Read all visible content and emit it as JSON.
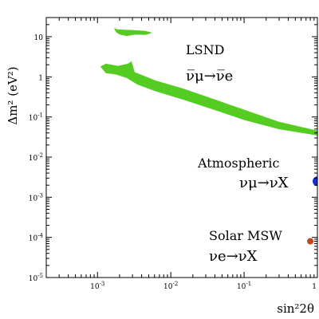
{
  "chart_data": {
    "type": "scatter",
    "title": "",
    "xlabel": "sin²2θ",
    "ylabel": "Δm² (eV²)",
    "xscale": "log",
    "yscale": "log",
    "xlim": [
      0.0002,
      1
    ],
    "ylim": [
      1e-05,
      30
    ],
    "grid": false,
    "legend": "none",
    "x_ticks": [
      {
        "value": 0.001,
        "base": "10",
        "exp": "-3"
      },
      {
        "value": 0.01,
        "base": "10",
        "exp": "-2"
      },
      {
        "value": 0.1,
        "base": "10",
        "exp": "-1"
      },
      {
        "value": 1,
        "base": "1",
        "exp": ""
      }
    ],
    "y_ticks": [
      {
        "value": 10,
        "base": "10",
        "exp": ""
      },
      {
        "value": 1,
        "base": "1",
        "exp": ""
      },
      {
        "value": 0.1,
        "base": "10",
        "exp": "-1"
      },
      {
        "value": 0.01,
        "base": "10",
        "exp": "-2"
      },
      {
        "value": 0.001,
        "base": "10",
        "exp": "-3"
      },
      {
        "value": 0.0001,
        "base": "10",
        "exp": "-4"
      },
      {
        "value": 1e-05,
        "base": "10",
        "exp": "-5"
      }
    ],
    "regions": [
      {
        "name": "LSND",
        "label_line1": "LSND",
        "label_line2": "ν̅μ→ν̅e",
        "color": "#55cc22",
        "polygons": [
          [
            [
              0.0011,
              1.8
            ],
            [
              0.0013,
              2.1
            ],
            [
              0.0019,
              1.85
            ],
            [
              0.0026,
              2.1
            ],
            [
              0.0029,
              2.4
            ],
            [
              0.0032,
              1.3
            ],
            [
              0.0062,
              0.8
            ],
            [
              0.015,
              0.5
            ],
            [
              0.04,
              0.27
            ],
            [
              0.1,
              0.15
            ],
            [
              0.3,
              0.075
            ],
            [
              1.0,
              0.045
            ],
            [
              1.0,
              0.035
            ],
            [
              0.3,
              0.05
            ],
            [
              0.1,
              0.085
            ],
            [
              0.04,
              0.15
            ],
            [
              0.015,
              0.27
            ],
            [
              0.006,
              0.45
            ],
            [
              0.0035,
              0.65
            ],
            [
              0.0025,
              0.95
            ],
            [
              0.0018,
              1.15
            ],
            [
              0.0013,
              1.25
            ]
          ],
          [
            [
              0.0017,
              16
            ],
            [
              0.0019,
              15
            ],
            [
              0.003,
              14.5
            ],
            [
              0.0045,
              13.8
            ],
            [
              0.0055,
              12.5
            ],
            [
              0.0045,
              11.2
            ],
            [
              0.0033,
              11.4
            ],
            [
              0.0025,
              10.5
            ],
            [
              0.002,
              11.5
            ],
            [
              0.0018,
              13
            ]
          ]
        ]
      },
      {
        "name": "Atmospheric",
        "label_line1": "Atmospheric",
        "label_line2": "νμ→νX",
        "color": "#1a2bd8",
        "center": [
          1,
          0.0025
        ],
        "size": 6
      },
      {
        "name": "Solar MSW",
        "label_line1": "Solar MSW",
        "label_line2": "νe→νX",
        "color": "#c0471f",
        "center": [
          0.8,
          8e-05
        ],
        "size": 4
      }
    ]
  }
}
